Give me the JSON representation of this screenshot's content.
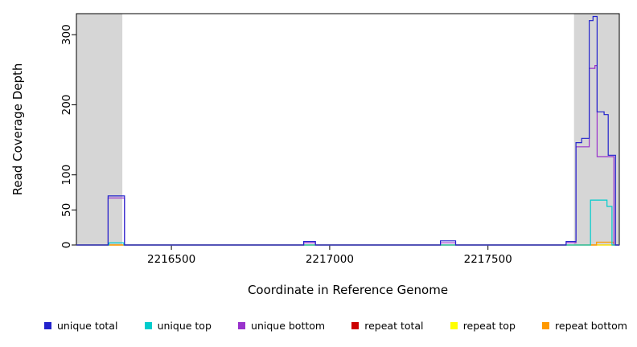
{
  "chart_data": {
    "type": "line",
    "title": "",
    "xlabel": "Coordinate in Reference Genome",
    "ylabel": "Read Coverage Depth",
    "xlim": [
      2216200,
      2217915
    ],
    "ylim": [
      0,
      330
    ],
    "x_ticks": [
      2216500,
      2217000,
      2217500
    ],
    "y_ticks": [
      0,
      50,
      100,
      200,
      300
    ],
    "grid": false,
    "legend_position": "bottom",
    "shade_color": "#D6D6D6",
    "background_shaded_regions": [
      {
        "from": 2216200,
        "to": 2216345
      },
      {
        "from": 2217772,
        "to": 2217915
      }
    ],
    "series": [
      {
        "name": "unique total",
        "color": "#2222CC",
        "points": [
          [
            2216200,
            0
          ],
          [
            2216300,
            0
          ],
          [
            2216300,
            70
          ],
          [
            2216352,
            70
          ],
          [
            2216352,
            0
          ],
          [
            2216918,
            0
          ],
          [
            2216918,
            5
          ],
          [
            2216955,
            5
          ],
          [
            2216955,
            0
          ],
          [
            2217350,
            0
          ],
          [
            2217350,
            6
          ],
          [
            2217398,
            6
          ],
          [
            2217398,
            0
          ],
          [
            2217747,
            0
          ],
          [
            2217747,
            5
          ],
          [
            2217778,
            5
          ],
          [
            2217778,
            146
          ],
          [
            2217796,
            146
          ],
          [
            2217796,
            152
          ],
          [
            2217820,
            152
          ],
          [
            2217820,
            320
          ],
          [
            2217832,
            320
          ],
          [
            2217832,
            326
          ],
          [
            2217845,
            326
          ],
          [
            2217845,
            190
          ],
          [
            2217867,
            190
          ],
          [
            2217867,
            186
          ],
          [
            2217880,
            186
          ],
          [
            2217880,
            128
          ],
          [
            2217903,
            128
          ],
          [
            2217903,
            0
          ],
          [
            2217915,
            0
          ]
        ]
      },
      {
        "name": "unique top",
        "color": "#00CCCC",
        "points": [
          [
            2216200,
            0
          ],
          [
            2216303,
            0
          ],
          [
            2216303,
            3
          ],
          [
            2216350,
            3
          ],
          [
            2216350,
            0
          ],
          [
            2217824,
            0
          ],
          [
            2217824,
            64
          ],
          [
            2217876,
            64
          ],
          [
            2217876,
            55
          ],
          [
            2217892,
            55
          ],
          [
            2217892,
            0
          ],
          [
            2217915,
            0
          ]
        ]
      },
      {
        "name": "unique bottom",
        "color": "#9933CC",
        "points": [
          [
            2216200,
            0
          ],
          [
            2216300,
            0
          ],
          [
            2216300,
            67
          ],
          [
            2216352,
            67
          ],
          [
            2216352,
            0
          ],
          [
            2216918,
            0
          ],
          [
            2216918,
            3
          ],
          [
            2216955,
            3
          ],
          [
            2216955,
            0
          ],
          [
            2217350,
            0
          ],
          [
            2217350,
            3
          ],
          [
            2217398,
            3
          ],
          [
            2217398,
            0
          ],
          [
            2217747,
            0
          ],
          [
            2217747,
            3
          ],
          [
            2217778,
            3
          ],
          [
            2217778,
            140
          ],
          [
            2217820,
            140
          ],
          [
            2217820,
            252
          ],
          [
            2217838,
            252
          ],
          [
            2217838,
            256
          ],
          [
            2217845,
            256
          ],
          [
            2217845,
            126
          ],
          [
            2217898,
            126
          ],
          [
            2217898,
            0
          ],
          [
            2217915,
            0
          ]
        ]
      },
      {
        "name": "repeat total",
        "color": "#CC0000",
        "points": [
          [
            2216200,
            0
          ],
          [
            2217915,
            0
          ]
        ]
      },
      {
        "name": "repeat top",
        "color": "#FFFF00",
        "points": [
          [
            2216200,
            0
          ],
          [
            2217915,
            0
          ]
        ]
      },
      {
        "name": "repeat bottom",
        "color": "#FF9900",
        "points": [
          [
            2216200,
            0
          ],
          [
            2217843,
            0
          ],
          [
            2217843,
            4
          ],
          [
            2217897,
            4
          ],
          [
            2217897,
            0
          ],
          [
            2217915,
            0
          ]
        ]
      }
    ]
  }
}
